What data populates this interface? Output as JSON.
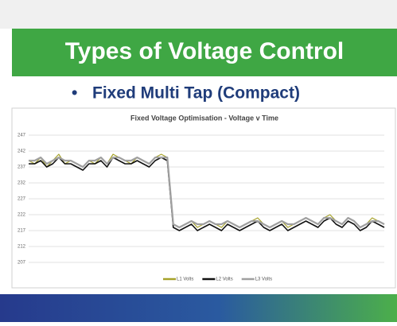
{
  "slide": {
    "title": "Types of Voltage Control",
    "bullet": "Fixed Multi Tap (Compact)"
  },
  "chart_data": {
    "type": "line",
    "title": "Fixed Voltage Optimisation - Voltage v Time",
    "ylim": [
      207,
      247
    ],
    "yticks": [
      207,
      212,
      217,
      222,
      227,
      232,
      237,
      242,
      247
    ],
    "grid": true,
    "series": [
      {
        "name": "L1 Volts",
        "color": "#a6a22a",
        "values": [
          239,
          238,
          240,
          237,
          239,
          241,
          238,
          239,
          238,
          237,
          239,
          238,
          240,
          238,
          241,
          240,
          239,
          238,
          240,
          239,
          238,
          240,
          241,
          240,
          219,
          218,
          219,
          220,
          218,
          219,
          220,
          219,
          218,
          220,
          219,
          218,
          219,
          220,
          221,
          219,
          218,
          219,
          220,
          218,
          219,
          220,
          221,
          220,
          219,
          221,
          222,
          220,
          219,
          221,
          220,
          218,
          219,
          221,
          220,
          219
        ]
      },
      {
        "name": "L2 Volts",
        "color": "#111111",
        "values": [
          238,
          238,
          239,
          237,
          238,
          240,
          238,
          238,
          237,
          236,
          238,
          238,
          239,
          237,
          240,
          239,
          238,
          238,
          239,
          238,
          237,
          239,
          240,
          239,
          218,
          217,
          218,
          219,
          217,
          218,
          219,
          218,
          217,
          219,
          218,
          217,
          218,
          219,
          220,
          218,
          217,
          218,
          219,
          217,
          218,
          219,
          220,
          219,
          218,
          220,
          221,
          219,
          218,
          220,
          219,
          217,
          218,
          220,
          219,
          218
        ]
      },
      {
        "name": "L3 Volts",
        "color": "#a0a0a0",
        "values": [
          239,
          239,
          240,
          238,
          239,
          240,
          239,
          239,
          238,
          237,
          239,
          239,
          240,
          238,
          240,
          240,
          239,
          239,
          240,
          239,
          238,
          240,
          240,
          240,
          219,
          218,
          219,
          220,
          219,
          219,
          220,
          219,
          219,
          220,
          219,
          218,
          219,
          220,
          220,
          219,
          218,
          219,
          220,
          219,
          219,
          220,
          221,
          220,
          219,
          221,
          221,
          220,
          219,
          221,
          220,
          218,
          219,
          220,
          220,
          219
        ]
      }
    ]
  }
}
